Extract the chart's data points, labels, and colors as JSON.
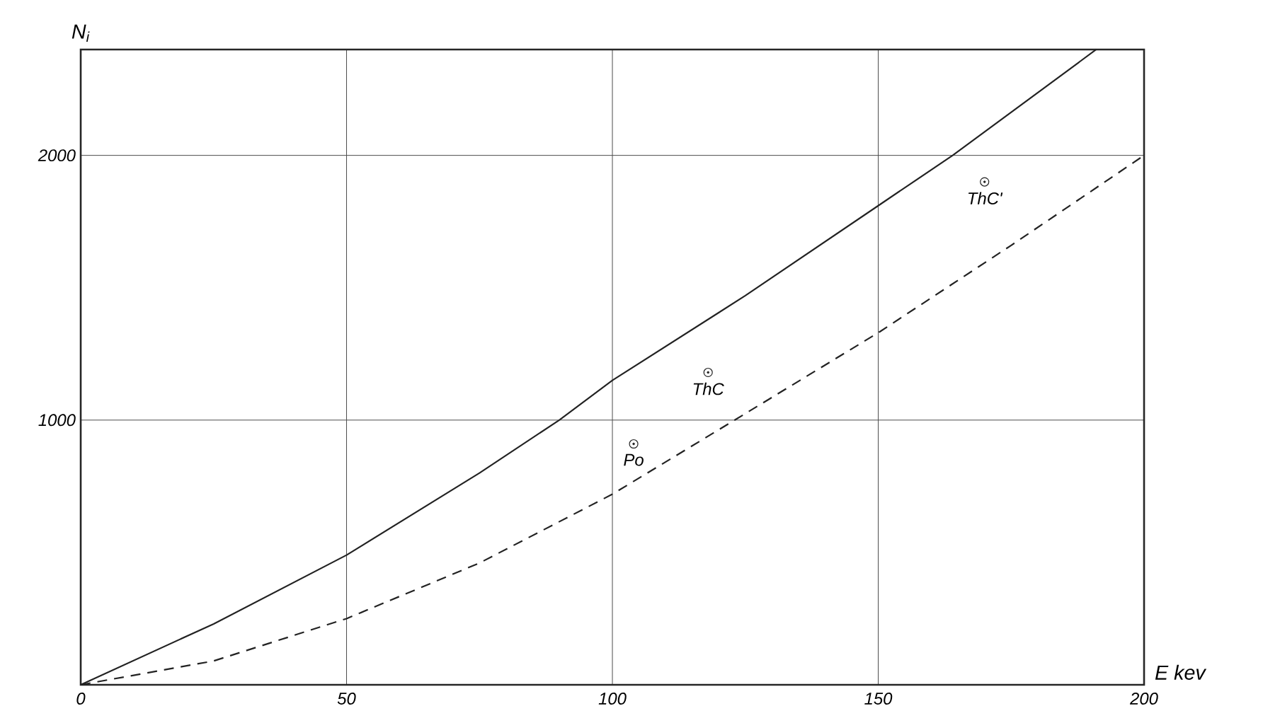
{
  "chart_data": {
    "type": "line",
    "xlabel": "E kev",
    "ylabel": "N$_{i}$",
    "xlim": [
      0,
      200
    ],
    "ylim": [
      0,
      2400
    ],
    "xticks": [
      0,
      50,
      100,
      150,
      200
    ],
    "yticks": [
      1000,
      2000
    ],
    "grid": true,
    "series": [
      {
        "color": "#222222",
        "line_style": "solid",
        "marker": "none",
        "x": [
          0,
          25,
          50,
          75,
          90,
          100,
          125,
          150,
          164,
          191
        ],
        "values": [
          0,
          230,
          490,
          800,
          1000,
          1150,
          1470,
          1810,
          2000,
          2400
        ]
      },
      {
        "color": "#222222",
        "line_style": "dashed",
        "marker": "none",
        "x": [
          0,
          25,
          50,
          75,
          100,
          123,
          150,
          175,
          200
        ],
        "values": [
          0,
          90,
          250,
          460,
          720,
          1000,
          1330,
          1660,
          2000
        ]
      },
      {
        "type": "scatter",
        "color": "#222222",
        "marker": "circle",
        "x": [
          104,
          118,
          170
        ],
        "values": [
          910,
          1180,
          1900
        ]
      }
    ],
    "annotations": [
      {
        "text": "Po",
        "x": 104,
        "y": 910
      },
      {
        "text": "ThC",
        "x": 118,
        "y": 1180
      },
      {
        "text": "ThC'",
        "x": 170,
        "y": 1900
      }
    ]
  }
}
